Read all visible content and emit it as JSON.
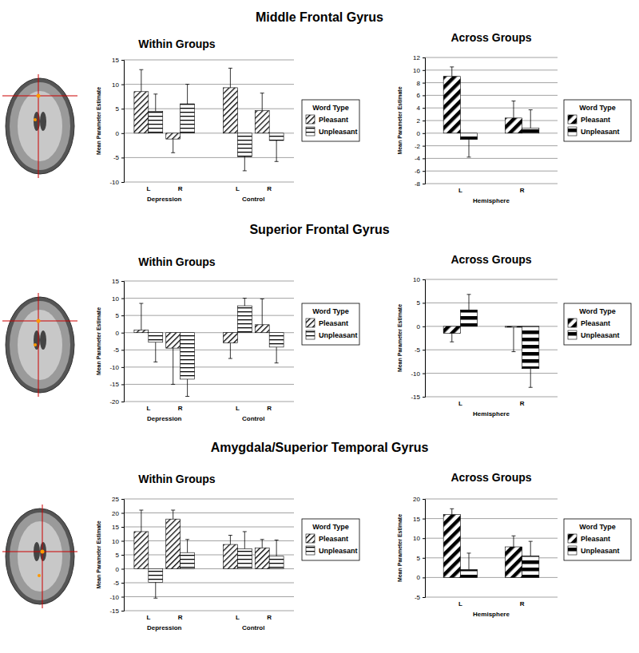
{
  "chart_data": [
    {
      "type": "bar",
      "section_title": "Middle Frontal Gyrus",
      "title": "Within Groups",
      "y_label": "Mean Parameter Estimate",
      "categories": [
        "L",
        "R",
        "L",
        "R"
      ],
      "groups": [
        "Depression",
        "Control"
      ],
      "series": [
        {
          "name": "Pleasant",
          "color": "#000000",
          "values": [
            8.5,
            -1.2,
            9.3,
            4.6
          ],
          "errors": [
            4.5,
            2.8,
            4.0,
            3.6
          ]
        },
        {
          "name": "Unpleasant",
          "color": "#000000",
          "values": [
            4.5,
            6.0,
            -4.8,
            -1.5
          ],
          "errors": [
            3.5,
            4.0,
            2.9,
            4.3
          ]
        }
      ],
      "ylim": [
        -10,
        15
      ],
      "yticks": [
        -10,
        -5,
        0,
        5,
        10,
        15
      ],
      "grid": true,
      "legend": "right",
      "legend_title": "Word Type"
    },
    {
      "type": "bar",
      "title": "Across Groups",
      "y_label": "Mean Parameter Estimate",
      "x_label": "Hemisphere",
      "categories": [
        "L",
        "R"
      ],
      "series": [
        {
          "name": "Pleasant",
          "color": "#000000",
          "values": [
            9.0,
            2.4
          ],
          "errors": [
            1.5,
            2.7
          ]
        },
        {
          "name": "Unpleasant",
          "color": "#000000",
          "values": [
            -1.0,
            0.8
          ],
          "errors": [
            2.8,
            2.9
          ]
        }
      ],
      "ylim": [
        -8,
        12
      ],
      "yticks": [
        -8,
        -6,
        -4,
        -2,
        0,
        2,
        4,
        6,
        8,
        10,
        12
      ],
      "grid": true,
      "legend": "right",
      "legend_title": "Word Type"
    },
    {
      "type": "bar",
      "section_title": "Superior Frontal Gyrus",
      "title": "Within Groups",
      "y_label": "Mean Parameter Estimate",
      "categories": [
        "L",
        "R",
        "L",
        "R"
      ],
      "groups": [
        "Depression",
        "Control"
      ],
      "series": [
        {
          "name": "Pleasant",
          "color": "#000000",
          "values": [
            0.8,
            -4.5,
            -3.0,
            2.3
          ],
          "errors": [
            7.7,
            10.5,
            4.5,
            7.5
          ]
        },
        {
          "name": "Unpleasant",
          "color": "#000000",
          "values": [
            -2.8,
            -13.5,
            7.8,
            -4.2
          ],
          "errors": [
            5.7,
            5.0,
            2.2,
            4.6
          ]
        }
      ],
      "ylim": [
        -20,
        15
      ],
      "yticks": [
        -20,
        -15,
        -10,
        -5,
        0,
        5,
        10,
        15
      ],
      "grid": true,
      "legend": "right",
      "legend_title": "Word Type"
    },
    {
      "type": "bar",
      "title": "Across Groups",
      "y_label": "Mean Parameter Estimate",
      "x_label": "Hemisphere",
      "categories": [
        "L",
        "R"
      ],
      "series": [
        {
          "name": "Pleasant",
          "color": "#000000",
          "values": [
            -1.5,
            -0.2
          ],
          "errors": [
            1.8,
            5.2
          ]
        },
        {
          "name": "Unpleasant",
          "color": "#000000",
          "values": [
            3.5,
            -9.0
          ],
          "errors": [
            3.3,
            4.0
          ]
        }
      ],
      "ylim": [
        -15,
        10
      ],
      "yticks": [
        -15,
        -10,
        -5,
        0,
        5,
        10
      ],
      "grid": true,
      "legend": "right",
      "legend_title": "Word Type"
    },
    {
      "type": "bar",
      "section_title": "Amygdala/Superior Temporal Gyrus",
      "title": "Within Groups",
      "y_label": "Mean Parameter Estimate",
      "categories": [
        "L",
        "R",
        "L",
        "R"
      ],
      "groups": [
        "Depression",
        "Control"
      ],
      "series": [
        {
          "name": "Pleasant",
          "color": "#000000",
          "values": [
            13.3,
            17.8,
            8.7,
            7.5
          ],
          "errors": [
            7.7,
            3.2,
            3.3,
            3.0
          ]
        },
        {
          "name": "Unpleasant",
          "color": "#000000",
          "values": [
            -4.8,
            5.8,
            7.2,
            4.5
          ],
          "errors": [
            5.7,
            4.7,
            6.1,
            5.8
          ]
        }
      ],
      "ylim": [
        -15,
        25
      ],
      "yticks": [
        -15,
        -10,
        -5,
        0,
        5,
        10,
        15,
        20,
        25
      ],
      "grid": true,
      "legend": "right",
      "legend_title": "Word Type"
    },
    {
      "type": "bar",
      "title": "Across Groups",
      "y_label": "Mean Parameter Estimate",
      "x_label": "Hemisphere",
      "categories": [
        "L",
        "R"
      ],
      "series": [
        {
          "name": "Pleasant",
          "color": "#000000",
          "values": [
            16.0,
            7.8
          ],
          "errors": [
            1.5,
            2.8
          ]
        },
        {
          "name": "Unpleasant",
          "color": "#000000",
          "values": [
            2.0,
            5.5
          ],
          "errors": [
            4.2,
            3.7
          ]
        }
      ],
      "ylim": [
        -5,
        20
      ],
      "yticks": [
        -5,
        0,
        5,
        10,
        15,
        20
      ],
      "grid": true,
      "legend": "right",
      "legend_title": "Word Type"
    }
  ]
}
